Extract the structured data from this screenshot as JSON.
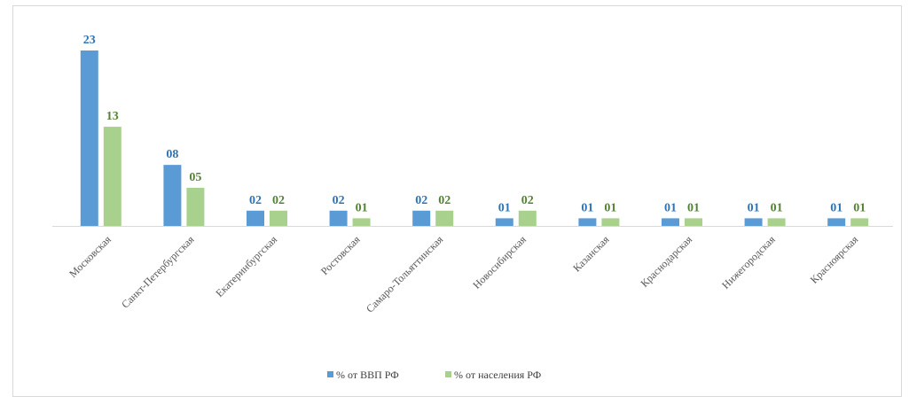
{
  "chart_data": {
    "type": "bar",
    "title": "",
    "xlabel": "",
    "ylabel": "",
    "ylim": [
      0,
      2.6
    ],
    "grid": false,
    "legend_position": "bottom",
    "categories": [
      "Московская",
      "Санкт-Петербургская",
      "Екатеринбургская",
      "Ростовская",
      "Самаро-Тольяттинская",
      "Новосибирская",
      "Казанская",
      "Краснодарская",
      "Нижегородская",
      "Красноярская"
    ],
    "series": [
      {
        "name": "% от ВВП РФ",
        "color": "#5b9bd5",
        "label_color": "#2e74b5",
        "values": [
          2.3,
          0.8,
          0.2,
          0.2,
          0.2,
          0.1,
          0.1,
          0.1,
          0.1,
          0.1
        ],
        "labels": [
          "23",
          "08",
          "02",
          "02",
          "02",
          "01",
          "01",
          "01",
          "01",
          "01"
        ]
      },
      {
        "name": "% от населения РФ",
        "color": "#a9d18e",
        "label_color": "#548235",
        "values": [
          1.3,
          0.5,
          0.2,
          0.1,
          0.2,
          0.2,
          0.1,
          0.1,
          0.1,
          0.1
        ],
        "labels": [
          "13",
          "05",
          "02",
          "01",
          "02",
          "02",
          "01",
          "01",
          "01",
          "01"
        ]
      }
    ]
  }
}
